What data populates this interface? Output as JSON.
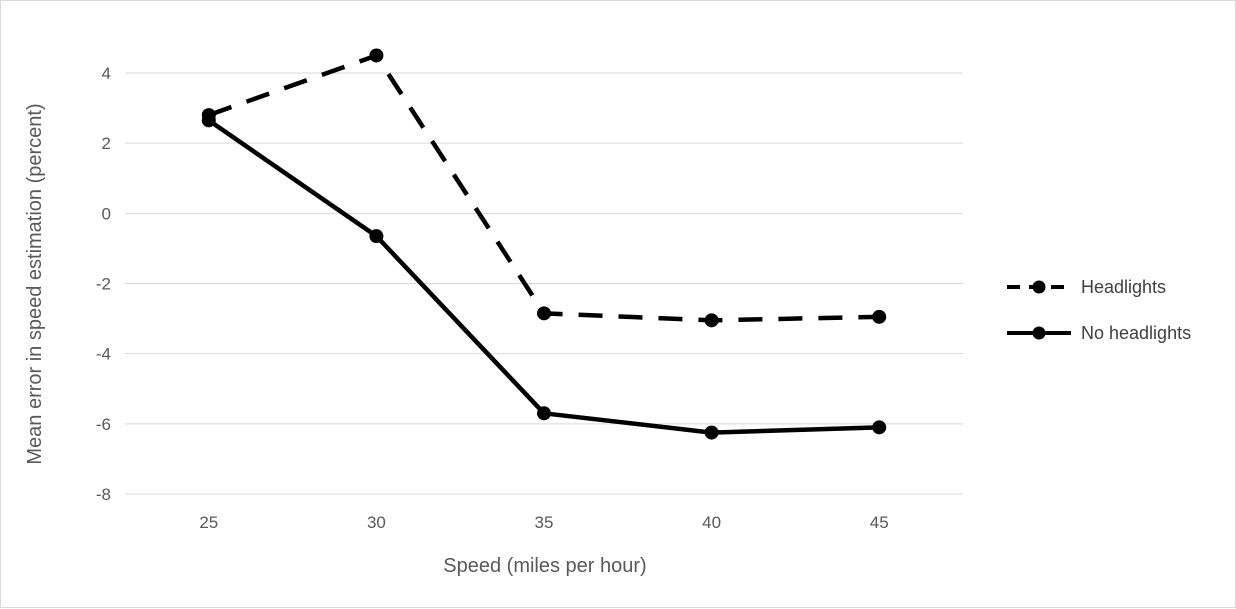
{
  "chart_data": {
    "type": "line",
    "title": "",
    "xlabel": "Speed (miles per hour)",
    "ylabel": "Mean error in speed estimation (percent)",
    "categories": [
      "25",
      "30",
      "35",
      "40",
      "45"
    ],
    "ylim": [
      -8,
      4
    ],
    "yticks": [
      4,
      2,
      0,
      -2,
      -4,
      -6,
      -8
    ],
    "ytick_labels": [
      "4",
      "2",
      "0",
      "-2",
      "-4",
      "-6",
      "-8"
    ],
    "grid": true,
    "legend_position": "right",
    "series": [
      {
        "name": "Headlights",
        "values": [
          2.8,
          4.5,
          -2.85,
          -3.05,
          -2.95
        ],
        "style": "dashed",
        "color": "#000000"
      },
      {
        "name": "No headlights",
        "values": [
          2.65,
          -0.65,
          -5.7,
          -6.25,
          -6.1
        ],
        "style": "solid",
        "color": "#000000"
      }
    ]
  }
}
